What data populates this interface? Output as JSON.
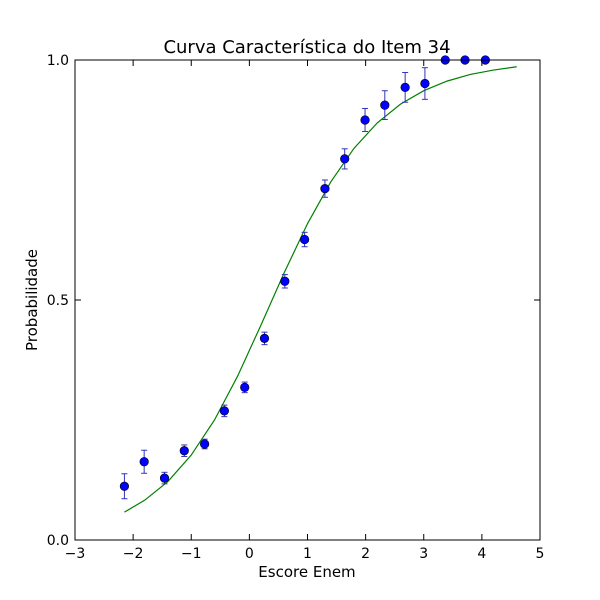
{
  "chart_data": {
    "type": "scatter",
    "title": "Curva Característica do Item 34",
    "xlabel": "Escore Enem",
    "ylabel": "Probabilidade",
    "xlim": [
      -3,
      5
    ],
    "ylim": [
      0,
      1
    ],
    "xticks": [
      {
        "value": -3,
        "label": "−3"
      },
      {
        "value": -2,
        "label": "−2"
      },
      {
        "value": -1,
        "label": "−1"
      },
      {
        "value": 0,
        "label": "0"
      },
      {
        "value": 1,
        "label": "1"
      },
      {
        "value": 2,
        "label": "2"
      },
      {
        "value": 3,
        "label": "3"
      },
      {
        "value": 4,
        "label": "4"
      },
      {
        "value": 5,
        "label": "5"
      }
    ],
    "yticks": [
      {
        "value": 0,
        "label": "0.0"
      },
      {
        "value": 0.5,
        "label": "0.5"
      },
      {
        "value": 1,
        "label": "1.0"
      }
    ],
    "grid": false,
    "series": [
      {
        "kind": "points-with-error-bars",
        "color": "#0000ff",
        "error_color": "#3333bb",
        "points": [
          {
            "x": -2.15,
            "y": 0.112,
            "err": 0.026
          },
          {
            "x": -1.81,
            "y": 0.163,
            "err": 0.024
          },
          {
            "x": -1.46,
            "y": 0.129,
            "err": 0.012
          },
          {
            "x": -1.12,
            "y": 0.186,
            "err": 0.012
          },
          {
            "x": -0.77,
            "y": 0.2,
            "err": 0.01
          },
          {
            "x": -0.43,
            "y": 0.269,
            "err": 0.012
          },
          {
            "x": -0.08,
            "y": 0.318,
            "err": 0.011
          },
          {
            "x": 0.26,
            "y": 0.42,
            "err": 0.013
          },
          {
            "x": 0.61,
            "y": 0.539,
            "err": 0.014
          },
          {
            "x": 0.95,
            "y": 0.626,
            "err": 0.015
          },
          {
            "x": 1.3,
            "y": 0.732,
            "err": 0.018
          },
          {
            "x": 1.64,
            "y": 0.794,
            "err": 0.021
          },
          {
            "x": 1.99,
            "y": 0.875,
            "err": 0.024
          },
          {
            "x": 2.33,
            "y": 0.906,
            "err": 0.03
          },
          {
            "x": 2.68,
            "y": 0.943,
            "err": 0.031
          },
          {
            "x": 3.02,
            "y": 0.951,
            "err": 0.033
          },
          {
            "x": 3.37,
            "y": 1.0,
            "err": 0.0
          },
          {
            "x": 3.71,
            "y": 1.0,
            "err": 0.0
          },
          {
            "x": 4.06,
            "y": 1.0,
            "err": 0.0
          }
        ]
      },
      {
        "kind": "line",
        "color": "#008000",
        "x": [
          -2.15,
          -1.8,
          -1.4,
          -1.0,
          -0.6,
          -0.2,
          0.2,
          0.6,
          1.0,
          1.4,
          1.8,
          2.2,
          2.6,
          3.0,
          3.4,
          3.8,
          4.2,
          4.6
        ],
        "y": [
          0.058,
          0.083,
          0.122,
          0.177,
          0.25,
          0.342,
          0.448,
          0.557,
          0.659,
          0.746,
          0.816,
          0.869,
          0.908,
          0.936,
          0.956,
          0.97,
          0.979,
          0.986
        ]
      }
    ]
  }
}
